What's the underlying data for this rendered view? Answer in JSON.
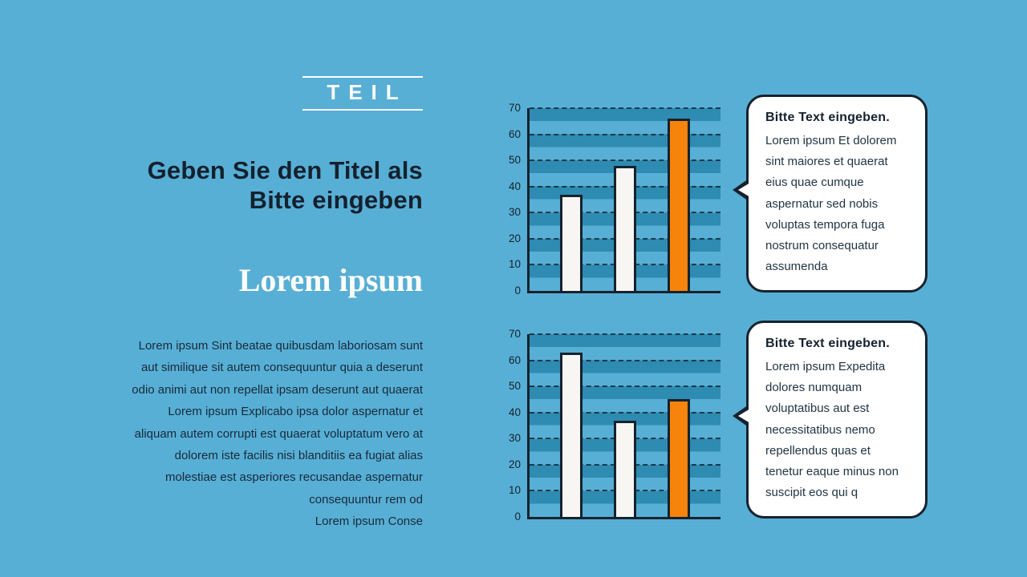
{
  "colors": {
    "background": "#58AFD5",
    "stripe": "#2E8BB1",
    "ink": "#16222E",
    "orange_bar": "#F6830B",
    "white_bar": "#F7F6F2",
    "callout_background": "#FFFFFF"
  },
  "left_panel": {
    "section_label": "TEIL",
    "title_lines": [
      "Geben Sie den Titel als",
      "Bitte eingeben"
    ],
    "subtitle": "Lorem ipsum",
    "paragraph_lines": [
      "Lorem ipsum Sint beatae quibusdam laboriosam sunt",
      "aut similique sit autem consequuntur quia a deserunt",
      "odio animi aut non repellat ipsam deserunt aut quaerat",
      "Lorem ipsum Explicabo ipsa dolor aspernatur et",
      "aliquam autem corrupti est quaerat voluptatum vero at",
      "dolorem iste facilis nisi blanditiis ea fugiat alias",
      "molestiae est asperiores recusandae aspernatur",
      "consequuntur rem od",
      "Lorem ipsum Conse"
    ]
  },
  "callouts": [
    {
      "title": "Bitte Text eingeben.",
      "body": "Lorem ipsum Et dolorem sint maiores et quaerat eius quae cumque aspernatur sed nobis voluptas tempora fuga nostrum consequatur assumenda"
    },
    {
      "title": "Bitte Text eingeben.",
      "body": "Lorem ipsum Expedita dolores numquam voluptatibus aut est necessitatibus nemo repellendus quas et tenetur eaque minus non suscipit eos qui q"
    }
  ],
  "chart_data": [
    {
      "type": "bar",
      "values": [
        37,
        48,
        66
      ],
      "bar_colors": [
        "#F7F6F2",
        "#F7F6F2",
        "#F6830B"
      ],
      "ylim": [
        0,
        70
      ],
      "yticks": [
        0,
        10,
        20,
        30,
        40,
        50,
        60,
        70
      ],
      "title": "",
      "xlabel": "",
      "ylabel": "",
      "grid": "dashed-horizontal",
      "legend": "none",
      "x_tick_labels": "none"
    },
    {
      "type": "bar",
      "values": [
        63,
        37,
        45
      ],
      "bar_colors": [
        "#F7F6F2",
        "#F7F6F2",
        "#F6830B"
      ],
      "ylim": [
        0,
        70
      ],
      "yticks": [
        0,
        10,
        20,
        30,
        40,
        50,
        60,
        70
      ],
      "title": "",
      "xlabel": "",
      "ylabel": "",
      "grid": "dashed-horizontal",
      "legend": "none",
      "x_tick_labels": "none"
    }
  ]
}
